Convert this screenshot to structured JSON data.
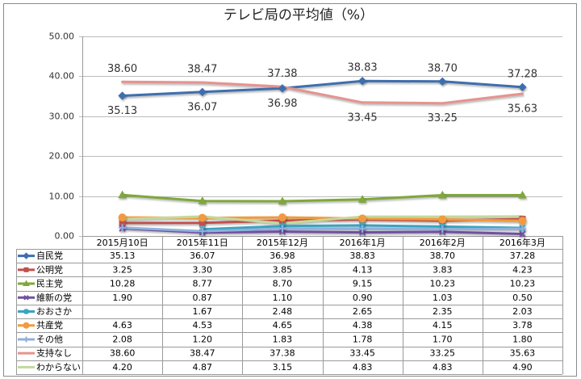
{
  "chart_data": {
    "type": "line",
    "title": "テレビ局の平均値（%）",
    "categories": [
      "2015月10日",
      "2015年11日",
      "2015年12月",
      "2016年1月",
      "2016年2月",
      "2016年3月"
    ],
    "ylim": [
      0,
      50
    ],
    "yticks": [
      "0.00",
      "10.00",
      "20.00",
      "30.00",
      "40.00",
      "50.00"
    ],
    "grid": "horizontal",
    "legend": "data-table",
    "series": [
      {
        "name": "自民党",
        "values": [
          35.13,
          36.07,
          36.98,
          38.83,
          38.7,
          37.28
        ],
        "color": "#3d6fae",
        "marker": "diamond",
        "data_labels": true
      },
      {
        "name": "公明党",
        "values": [
          3.25,
          3.3,
          3.85,
          4.13,
          3.83,
          4.23
        ],
        "color": "#c0504d",
        "marker": "square"
      },
      {
        "name": "民主党",
        "values": [
          10.28,
          8.77,
          8.7,
          9.15,
          10.23,
          10.23
        ],
        "color": "#7fa83a",
        "marker": "triangle"
      },
      {
        "name": "維新の党",
        "values": [
          1.9,
          0.87,
          1.1,
          0.9,
          1.03,
          0.5
        ],
        "color": "#7050a0",
        "marker": "x"
      },
      {
        "name": "おおさか",
        "values": [
          null,
          1.67,
          2.48,
          2.65,
          2.35,
          2.03
        ],
        "color": "#3aa3c0",
        "marker": "star"
      },
      {
        "name": "共産党",
        "values": [
          4.63,
          4.53,
          4.65,
          4.38,
          4.15,
          3.78
        ],
        "color": "#f29a3e",
        "marker": "circle"
      },
      {
        "name": "その他",
        "values": [
          2.08,
          1.2,
          1.83,
          1.78,
          1.7,
          1.8
        ],
        "color": "#8fb0dc",
        "marker": "plus"
      },
      {
        "name": "支持なし",
        "values": [
          38.6,
          38.47,
          37.38,
          33.45,
          33.25,
          35.63
        ],
        "color": "#e6938f",
        "marker": "none",
        "data_labels": true
      },
      {
        "name": "わからない",
        "values": [
          4.2,
          4.87,
          3.15,
          4.83,
          4.83,
          4.9
        ],
        "color": "#c3d99b",
        "marker": "none"
      }
    ]
  }
}
